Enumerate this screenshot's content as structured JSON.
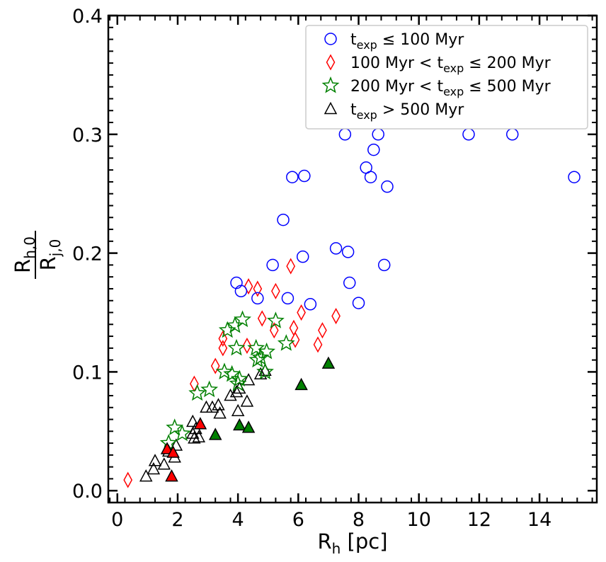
{
  "chart_data": {
    "type": "scatter",
    "xlabel": {
      "main": "R",
      "sub": "h",
      "suffix": " [pc]"
    },
    "ylabel": {
      "num_main": "R",
      "num_sub": "h,0",
      "den_main": "R",
      "den_sub": "j,0"
    },
    "xlim": [
      -0.3,
      15.9
    ],
    "ylim": [
      -0.01,
      0.4
    ],
    "xticks": [
      0,
      2,
      4,
      6,
      8,
      10,
      12,
      14
    ],
    "xtick_labels": [
      "0",
      "2",
      "4",
      "6",
      "8",
      "10",
      "12",
      "14"
    ],
    "yticks": [
      0.0,
      0.1,
      0.2,
      0.3,
      0.4
    ],
    "ytick_labels": [
      "0.0",
      "0.1",
      "0.2",
      "0.3",
      "0.4"
    ],
    "grid": false,
    "legend_position": "top-right",
    "series": [
      {
        "name": "t_exp ≤ 100 Myr",
        "marker": "circle",
        "color": "#0000ff",
        "points": [
          [
            3.95,
            0.175
          ],
          [
            4.1,
            0.168
          ],
          [
            4.65,
            0.162
          ],
          [
            5.15,
            0.19
          ],
          [
            5.5,
            0.228
          ],
          [
            5.65,
            0.162
          ],
          [
            5.8,
            0.264
          ],
          [
            6.15,
            0.197
          ],
          [
            6.2,
            0.265
          ],
          [
            6.4,
            0.157
          ],
          [
            7.25,
            0.204
          ],
          [
            7.55,
            0.3
          ],
          [
            7.65,
            0.201
          ],
          [
            7.7,
            0.175
          ],
          [
            8.0,
            0.158
          ],
          [
            8.25,
            0.272
          ],
          [
            8.4,
            0.264
          ],
          [
            8.5,
            0.287
          ],
          [
            8.65,
            0.3
          ],
          [
            8.85,
            0.19
          ],
          [
            8.95,
            0.256
          ],
          [
            11.65,
            0.3
          ],
          [
            13.1,
            0.3
          ],
          [
            15.15,
            0.264
          ]
        ]
      },
      {
        "name": "100 Myr < t_exp ≤ 200 Myr",
        "marker": "diamond",
        "color": "#ff0000",
        "points": [
          [
            0.35,
            0.009
          ],
          [
            2.55,
            0.09
          ],
          [
            3.25,
            0.105
          ],
          [
            3.5,
            0.128
          ],
          [
            3.5,
            0.12
          ],
          [
            4.3,
            0.122
          ],
          [
            4.35,
            0.172
          ],
          [
            4.65,
            0.17
          ],
          [
            4.8,
            0.145
          ],
          [
            5.2,
            0.135
          ],
          [
            5.25,
            0.168
          ],
          [
            5.75,
            0.189
          ],
          [
            5.85,
            0.137
          ],
          [
            5.9,
            0.127
          ],
          [
            6.1,
            0.15
          ],
          [
            6.65,
            0.123
          ],
          [
            6.8,
            0.135
          ],
          [
            7.25,
            0.147
          ]
        ]
      },
      {
        "name": "200 Myr < t_exp ≤ 500 Myr",
        "marker": "star",
        "color": "#008000",
        "points": [
          [
            1.7,
            0.04
          ],
          [
            1.9,
            0.053
          ],
          [
            2.15,
            0.048
          ],
          [
            2.65,
            0.082
          ],
          [
            3.05,
            0.085
          ],
          [
            3.55,
            0.1
          ],
          [
            3.65,
            0.135
          ],
          [
            3.8,
            0.098
          ],
          [
            3.9,
            0.139
          ],
          [
            3.95,
            0.12
          ],
          [
            4.0,
            0.09
          ],
          [
            4.05,
            0.094
          ],
          [
            4.15,
            0.144
          ],
          [
            4.6,
            0.12
          ],
          [
            4.65,
            0.11
          ],
          [
            4.75,
            0.112
          ],
          [
            4.9,
            0.1
          ],
          [
            4.95,
            0.117
          ],
          [
            5.25,
            0.143
          ],
          [
            5.6,
            0.124
          ]
        ]
      },
      {
        "name": "t_exp > 500 Myr",
        "marker": "triangle",
        "color": "#000000",
        "points": [
          [
            0.95,
            0.012
          ],
          [
            1.2,
            0.018
          ],
          [
            1.25,
            0.025
          ],
          [
            1.55,
            0.022
          ],
          [
            1.7,
            0.033
          ],
          [
            1.9,
            0.028
          ],
          [
            1.95,
            0.038
          ],
          [
            2.5,
            0.058
          ],
          [
            2.5,
            0.048
          ],
          [
            2.55,
            0.044
          ],
          [
            2.6,
            0.052
          ],
          [
            2.7,
            0.045
          ],
          [
            2.95,
            0.07
          ],
          [
            3.15,
            0.07
          ],
          [
            3.35,
            0.072
          ],
          [
            3.4,
            0.065
          ],
          [
            3.75,
            0.08
          ],
          [
            3.95,
            0.083
          ],
          [
            4.0,
            0.067
          ],
          [
            4.05,
            0.086
          ],
          [
            4.3,
            0.075
          ],
          [
            4.35,
            0.093
          ],
          [
            4.75,
            0.098
          ],
          [
            4.9,
            0.101
          ]
        ]
      }
    ],
    "filled_markers": [
      {
        "x": 1.65,
        "y": 0.035,
        "color": "#ff0000"
      },
      {
        "x": 1.8,
        "y": 0.012,
        "color": "#ff0000"
      },
      {
        "x": 1.85,
        "y": 0.032,
        "color": "#ff0000"
      },
      {
        "x": 2.75,
        "y": 0.056,
        "color": "#ff0000"
      },
      {
        "x": 3.25,
        "y": 0.047,
        "color": "#008000"
      },
      {
        "x": 4.05,
        "y": 0.055,
        "color": "#008000"
      },
      {
        "x": 4.35,
        "y": 0.053,
        "color": "#008000"
      },
      {
        "x": 6.1,
        "y": 0.089,
        "color": "#008000"
      },
      {
        "x": 7.0,
        "y": 0.107,
        "color": "#008000"
      }
    ],
    "legend": [
      {
        "marker": "circle",
        "color": "#0000ff",
        "parts": [
          {
            "t": "t"
          },
          {
            "t": "exp",
            "sub": true
          },
          {
            "t": " ≤ 100 Myr"
          }
        ]
      },
      {
        "marker": "diamond",
        "color": "#ff0000",
        "parts": [
          {
            "t": "100 Myr < t"
          },
          {
            "t": "exp",
            "sub": true
          },
          {
            "t": " ≤ 200 Myr"
          }
        ]
      },
      {
        "marker": "star",
        "color": "#008000",
        "parts": [
          {
            "t": "200 Myr < t"
          },
          {
            "t": "exp",
            "sub": true
          },
          {
            "t": " ≤ 500 Myr"
          }
        ]
      },
      {
        "marker": "triangle",
        "color": "#000000",
        "parts": [
          {
            "t": "t"
          },
          {
            "t": "exp",
            "sub": true
          },
          {
            "t": " > 500 Myr"
          }
        ]
      }
    ]
  }
}
